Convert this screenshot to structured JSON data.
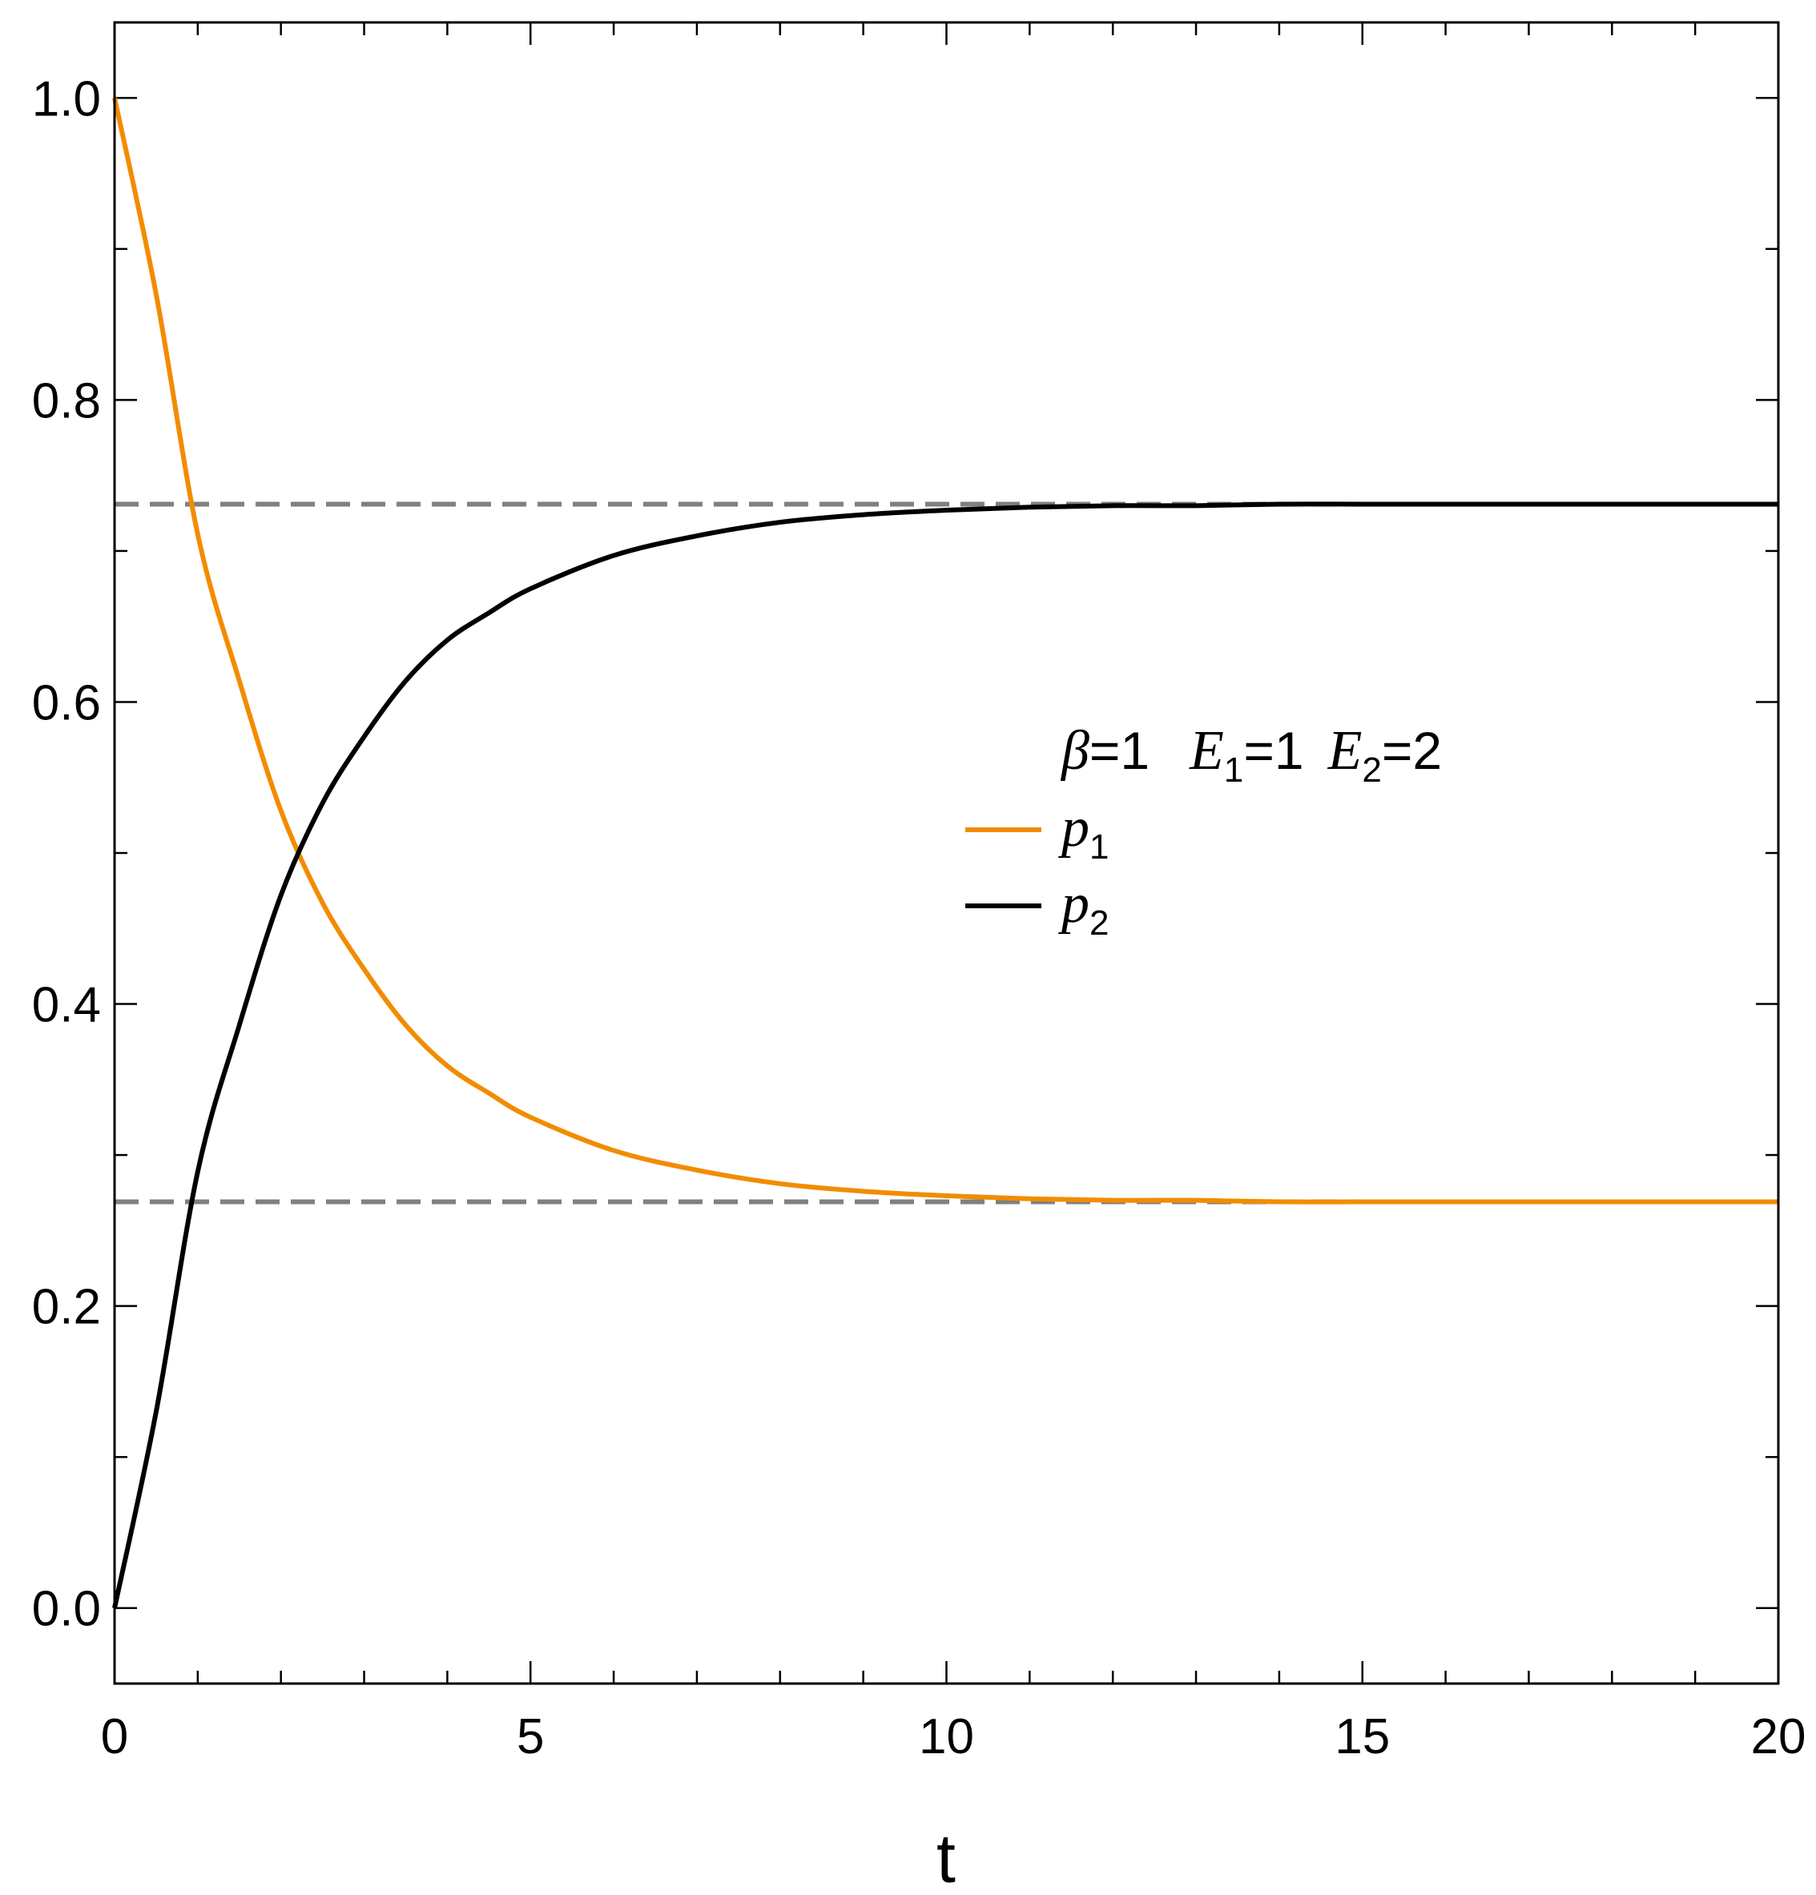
{
  "chart_data": {
    "type": "line",
    "xlabel": "t",
    "ylabel": "",
    "xlim": [
      0,
      20
    ],
    "ylim": [
      -0.05,
      1.05
    ],
    "xticks": [
      "0",
      "5",
      "10",
      "15",
      "20"
    ],
    "yticks": [
      "0.0",
      "0.2",
      "0.4",
      "0.6",
      "0.8",
      "1.0"
    ],
    "grid": false,
    "legend_position": "center-right",
    "legend_title": {
      "beta": "β",
      "beta_value": "=1",
      "e1": "E",
      "e1_sub": "1",
      "e1_value": "=1",
      "e2": "E",
      "e2_sub": "2",
      "e2_value": "=2"
    },
    "series": [
      {
        "name": "p",
        "name_sub": "1",
        "color": "#F28C00",
        "x": [
          0,
          0.5,
          1,
          1.5,
          2,
          2.5,
          3,
          3.5,
          4,
          4.5,
          5,
          6,
          7,
          8,
          9,
          10,
          11,
          12,
          13,
          14,
          15,
          16,
          17,
          18,
          19,
          20
        ],
        "y": [
          1.0,
          0.87,
          0.711,
          0.614,
          0.528,
          0.467,
          0.423,
          0.386,
          0.359,
          0.341,
          0.325,
          0.303,
          0.29,
          0.281,
          0.276,
          0.273,
          0.271,
          0.27,
          0.27,
          0.269,
          0.269,
          0.269,
          0.269,
          0.269,
          0.269,
          0.269
        ]
      },
      {
        "name": "p",
        "name_sub": "2",
        "color": "#000000",
        "x": [
          0,
          0.5,
          1,
          1.5,
          2,
          2.5,
          3,
          3.5,
          4,
          4.5,
          5,
          6,
          7,
          8,
          9,
          10,
          11,
          12,
          13,
          14,
          15,
          16,
          17,
          18,
          19,
          20
        ],
        "y": [
          0.0,
          0.13,
          0.289,
          0.386,
          0.472,
          0.533,
          0.577,
          0.614,
          0.641,
          0.659,
          0.675,
          0.697,
          0.71,
          0.719,
          0.724,
          0.727,
          0.729,
          0.73,
          0.73,
          0.731,
          0.731,
          0.731,
          0.731,
          0.731,
          0.731,
          0.731
        ]
      }
    ],
    "reference_lines": [
      {
        "y": 0.731,
        "color": "#808080",
        "style": "dashed"
      },
      {
        "y": 0.269,
        "color": "#808080",
        "style": "dashed"
      }
    ]
  }
}
